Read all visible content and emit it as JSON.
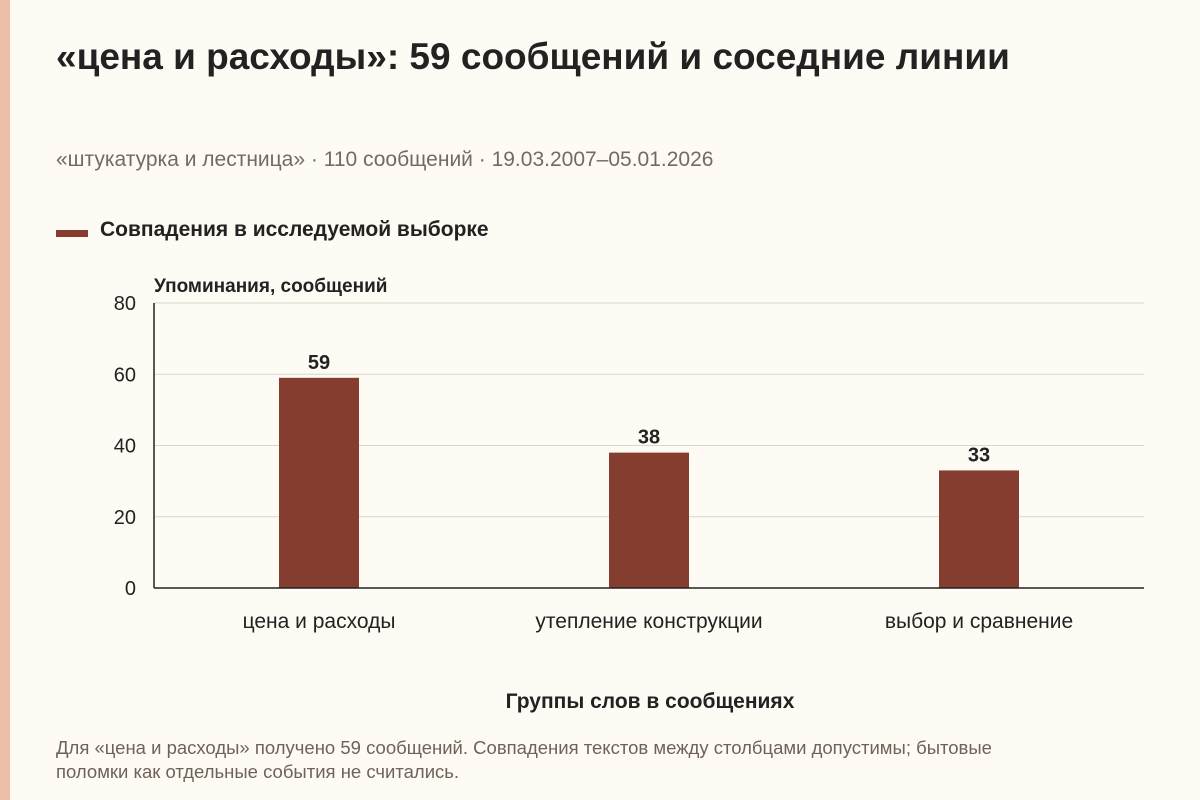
{
  "header": {
    "title": "«цена и расходы»: 59 сообщений и соседние линии",
    "subtitle": "«штукатурка и лестница» · 110 сообщений · 19.03.2007–05.01.2026"
  },
  "legend": {
    "label": "Совпадения в исследуемой выборке"
  },
  "footnote": "Для «цена и расходы» получено 59 сообщений. Совпадения текстов между столбцами допустимы; бытовые поломки как отдельные события не считались.",
  "colors": {
    "bar": "#843d2f",
    "accent": "#ecbfa6",
    "grid": "#d9d6cd",
    "axis": "#222222"
  },
  "chart_data": {
    "type": "bar",
    "categories": [
      "цена и расходы",
      "утепление конструкции",
      "выбор и сравнение"
    ],
    "series": [
      {
        "name": "Совпадения в исследуемой выборке",
        "values": [
          59,
          38,
          33
        ]
      }
    ],
    "value_labels": [
      "59",
      "38",
      "33"
    ],
    "xlabel": "Группы слов в сообщениях",
    "ylabel": "Упоминания, сообщений",
    "ylim": [
      0,
      80
    ],
    "yticks": [
      0,
      20,
      40,
      60,
      80
    ],
    "ytick_labels": [
      "0",
      "20",
      "40",
      "60",
      "80"
    ],
    "grid": true,
    "legend_position": "top-left"
  }
}
